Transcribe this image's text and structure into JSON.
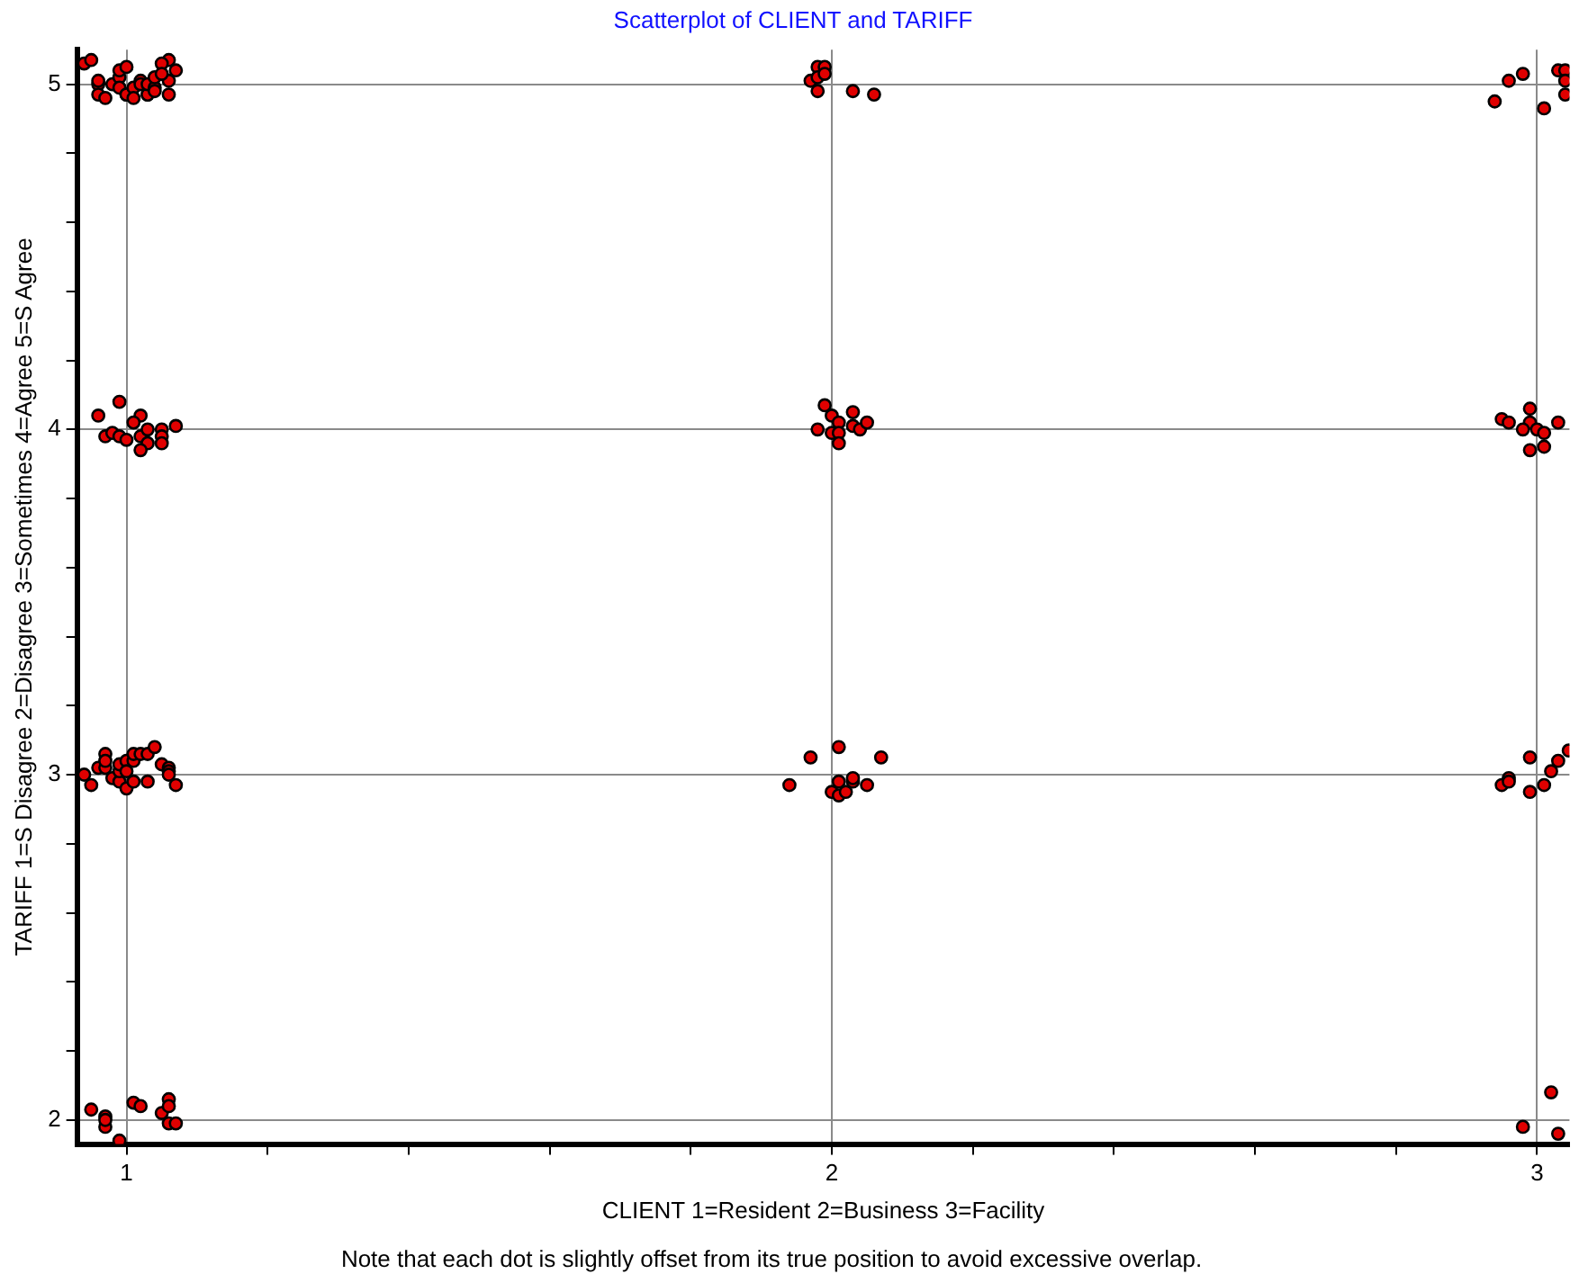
{
  "chart_data": {
    "type": "scatter",
    "title": "Scatterplot of CLIENT and TARIFF",
    "xlabel": "CLIENT 1=Resident 2=Business 3=Facility",
    "ylabel": "TARIFF 1=S Disagree 2=Disagree 3=Sometimes 4=Agree 5=S Agree",
    "annotations": [
      "Note that each dot is slightly offset from its true position to avoid excessive overlap."
    ],
    "xlim": [
      0.93,
      3.046
    ],
    "ylim": [
      1.93,
      5.1
    ],
    "xticks": [
      1,
      {
        "value": 1.2,
        "label": null
      },
      {
        "value": 1.4,
        "label": null
      },
      {
        "value": 1.6,
        "label": null
      },
      {
        "value": 1.8,
        "label": null
      },
      2,
      {
        "value": 2.2,
        "label": null
      },
      {
        "value": 2.4,
        "label": null
      },
      {
        "value": 2.6,
        "label": null
      },
      {
        "value": 2.8,
        "label": null
      },
      3
    ],
    "yticks": [
      2,
      {
        "value": 2.2,
        "label": null
      },
      {
        "value": 2.4,
        "label": null
      },
      {
        "value": 2.6,
        "label": null
      },
      {
        "value": 2.8,
        "label": null
      },
      3,
      {
        "value": 3.2,
        "label": null
      },
      {
        "value": 3.4,
        "label": null
      },
      {
        "value": 3.6,
        "label": null
      },
      {
        "value": 3.8,
        "label": null
      },
      4,
      {
        "value": 4.2,
        "label": null
      },
      {
        "value": 4.4,
        "label": null
      },
      {
        "value": 4.6,
        "label": null
      },
      {
        "value": 4.8,
        "label": null
      },
      5
    ],
    "grid": true,
    "marker": "circle",
    "legend": false,
    "series": [
      {
        "color": "#e00000",
        "x": [
          0.94,
          0.95,
          1.06,
          1.07,
          1.05,
          1.06,
          1.06,
          0.96,
          0.96,
          0.96,
          0.97,
          0.98,
          0.99,
          0.99,
          1.0,
          0.99,
          1.0,
          1.0,
          1.01,
          1.02,
          1.01,
          1.02,
          1.03,
          1.03,
          1.03,
          1.04,
          1.04,
          1.05,
          1.04,
          0.99,
          0.96,
          1.02,
          1.01,
          1.07,
          0.97,
          0.98,
          0.99,
          1.0,
          1.02,
          1.03,
          1.05,
          1.05,
          1.03,
          1.02,
          1.05,
          0.94,
          0.95,
          0.96,
          0.97,
          0.97,
          0.97,
          0.98,
          0.99,
          0.99,
          0.99,
          1.0,
          1.0,
          1.0,
          1.01,
          1.01,
          1.01,
          1.02,
          1.03,
          1.04,
          1.03,
          1.05,
          1.06,
          1.06,
          1.06,
          1.07,
          0.95,
          0.97,
          0.97,
          0.97,
          0.99,
          1.01,
          1.02,
          1.05,
          1.06,
          1.06,
          1.06,
          1.07,
          1.98,
          1.99,
          1.97,
          1.98,
          1.99,
          1.98,
          2.03,
          2.06,
          1.99,
          2.0,
          2.01,
          2.03,
          1.98,
          2.0,
          2.01,
          2.01,
          2.03,
          2.04,
          2.05,
          1.97,
          2.01,
          2.07,
          1.94,
          2.0,
          2.01,
          2.01,
          2.02,
          2.03,
          2.03,
          2.05,
          2.94,
          2.96,
          2.98,
          3.01,
          3.03,
          3.04,
          3.04,
          3.04,
          2.95,
          2.96,
          2.99,
          2.99,
          2.98,
          3.0,
          3.01,
          3.03,
          2.99,
          3.01,
          2.95,
          2.96,
          2.96,
          2.99,
          2.99,
          3.01,
          3.02,
          3.03,
          3.045,
          3.02,
          2.98,
          3.03
        ],
        "values": [
          5.06,
          5.07,
          5.07,
          5.04,
          5.06,
          5.01,
          4.97,
          5.0,
          5.01,
          4.97,
          4.96,
          5.0,
          5.02,
          5.04,
          5.05,
          4.99,
          4.97,
          4.97,
          4.99,
          5.01,
          4.96,
          5.0,
          4.97,
          4.97,
          5.0,
          4.99,
          5.02,
          5.03,
          4.98,
          4.08,
          4.04,
          4.04,
          4.02,
          4.01,
          3.98,
          3.99,
          3.98,
          3.97,
          3.98,
          4.0,
          4.0,
          3.98,
          3.96,
          3.94,
          3.96,
          3.0,
          2.97,
          3.02,
          3.02,
          3.06,
          3.04,
          2.99,
          2.98,
          3.01,
          3.03,
          3.04,
          2.96,
          3.01,
          3.04,
          3.06,
          2.98,
          3.06,
          3.06,
          3.08,
          2.98,
          3.03,
          3.02,
          3.01,
          3.0,
          2.97,
          2.03,
          1.98,
          2.01,
          2.0,
          1.94,
          2.05,
          2.04,
          2.02,
          2.06,
          2.04,
          1.99,
          1.99,
          5.05,
          5.05,
          5.01,
          5.02,
          5.03,
          4.98,
          4.98,
          4.97,
          4.07,
          4.04,
          4.02,
          4.05,
          4.0,
          3.99,
          3.99,
          3.96,
          4.01,
          4.0,
          4.02,
          3.05,
          3.08,
          3.05,
          2.97,
          2.95,
          2.94,
          2.98,
          2.95,
          2.98,
          2.99,
          2.97,
          4.95,
          5.01,
          5.03,
          4.93,
          5.04,
          5.04,
          5.01,
          4.97,
          4.03,
          4.02,
          4.06,
          4.02,
          4.0,
          4.0,
          3.99,
          4.02,
          3.94,
          3.95,
          2.97,
          2.99,
          2.98,
          3.05,
          2.95,
          2.97,
          3.01,
          3.04,
          3.07,
          2.08,
          1.98,
          1.96
        ]
      }
    ]
  }
}
